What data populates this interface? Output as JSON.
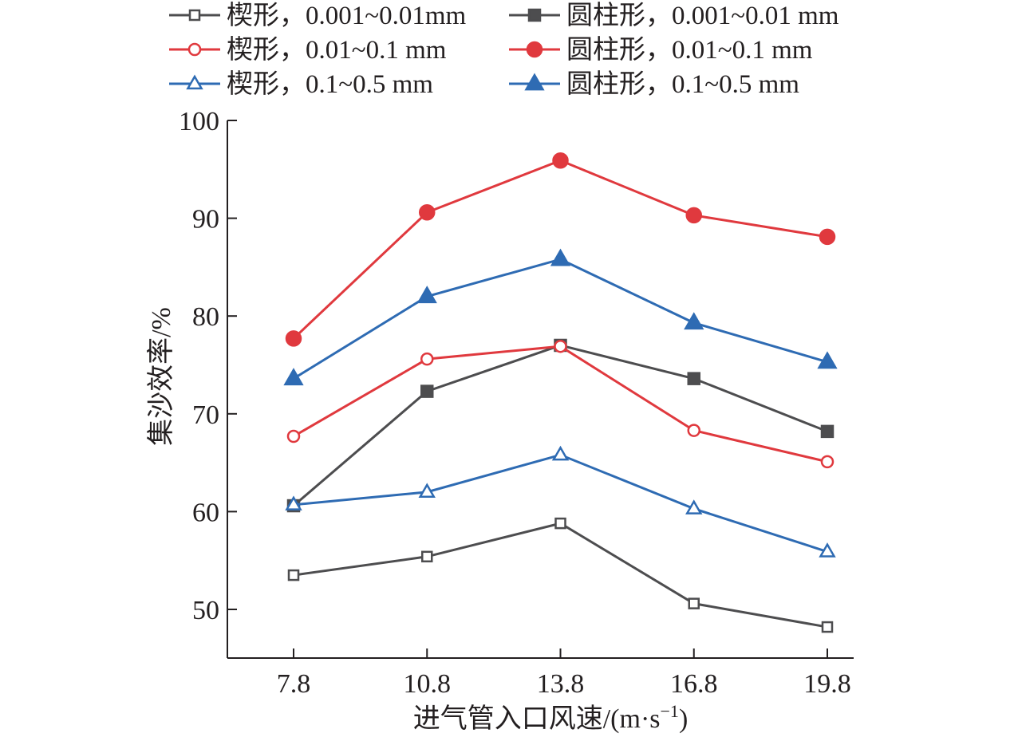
{
  "chart_data": {
    "type": "line",
    "title": "",
    "xlabel": "进气管入口风速/(m·s",
    "xlabel_superscript": "−1",
    "xlabel_suffix": ")",
    "ylabel": "集沙效率/%",
    "x": [
      7.8,
      10.8,
      13.8,
      16.8,
      19.8
    ],
    "x_tick_labels": [
      "7.8",
      "10.8",
      "13.8",
      "16.8",
      "19.8"
    ],
    "ylim": [
      45,
      100
    ],
    "y_ticks": [
      50,
      60,
      70,
      80,
      90,
      100
    ],
    "y_tick_labels": [
      "50",
      "60",
      "70",
      "80",
      "90",
      "100"
    ],
    "grid": false,
    "legend_position": "top",
    "series": [
      {
        "name": "楔形，0.001~0.01mm",
        "color": "#4d4d4f",
        "marker": "square",
        "filled": false,
        "values": [
          53.5,
          55.4,
          58.8,
          50.6,
          48.2
        ]
      },
      {
        "name": "圆柱形，0.001~0.01 mm",
        "color": "#4d4d4f",
        "marker": "square",
        "filled": true,
        "values": [
          60.6,
          72.3,
          77.0,
          73.6,
          68.2
        ]
      },
      {
        "name": "楔形，0.01~0.1 mm",
        "color": "#e0393e",
        "marker": "circle",
        "filled": false,
        "values": [
          67.7,
          75.6,
          76.9,
          68.3,
          65.1
        ]
      },
      {
        "name": "圆柱形，0.01~0.1 mm",
        "color": "#e0393e",
        "marker": "circle",
        "filled": true,
        "values": [
          77.7,
          90.6,
          95.9,
          90.3,
          88.1
        ]
      },
      {
        "name": "楔形，0.1~0.5 mm",
        "color": "#2e6bb3",
        "marker": "triangle",
        "filled": false,
        "values": [
          60.7,
          62.0,
          65.8,
          60.3,
          55.9
        ]
      },
      {
        "name": "圆柱形，0.1~0.5 mm",
        "color": "#2e6bb3",
        "marker": "triangle",
        "filled": true,
        "values": [
          73.6,
          82.0,
          85.8,
          79.3,
          75.3
        ]
      }
    ]
  }
}
